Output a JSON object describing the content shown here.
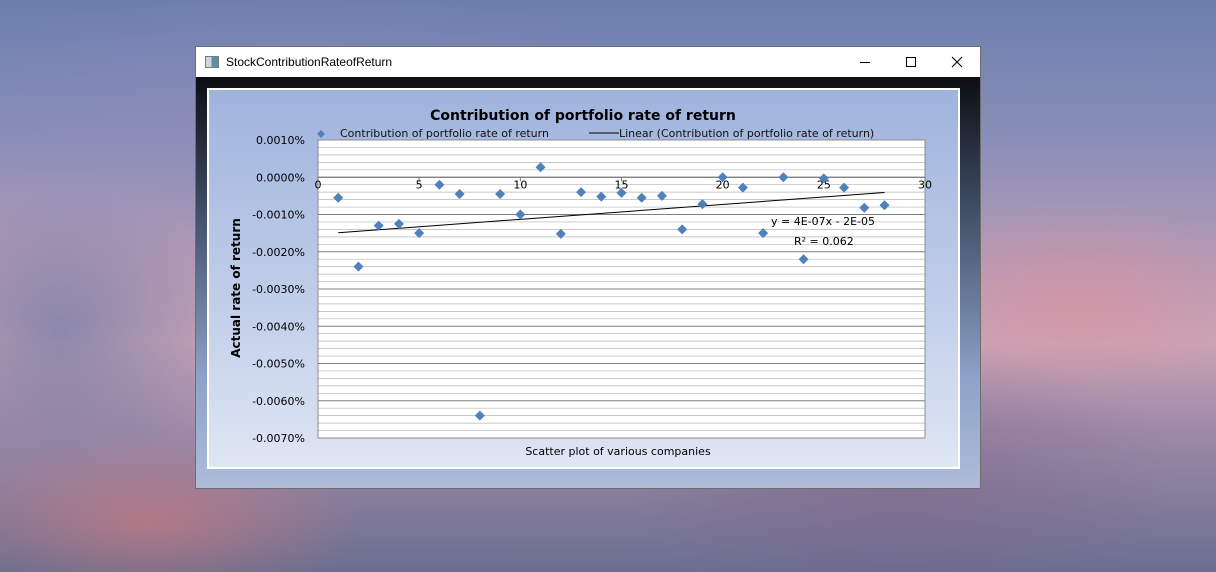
{
  "window": {
    "title": "StockContributionRateofReturn",
    "controls": {
      "minimize": "minimize-icon",
      "maximize": "maximize-icon",
      "close": "close-icon"
    }
  },
  "chart_data": {
    "type": "scatter",
    "title": "Contribution of portfolio rate of return",
    "xlabel": "Scatter plot of various companies",
    "ylabel": "Actual rate of return",
    "xlim": [
      0,
      30
    ],
    "ylim": [
      -0.007,
      0.001
    ],
    "x_ticks": [
      "0",
      "5",
      "10",
      "15",
      "20",
      "25",
      "30"
    ],
    "y_ticks": [
      "0.0010%",
      "0.0000%",
      "-0.0010%",
      "-0.0020%",
      "-0.0030%",
      "-0.0040%",
      "-0.0050%",
      "-0.0060%",
      "-0.0070%"
    ],
    "grid": true,
    "legend_position": "top",
    "series": [
      {
        "name": "Contribution of portfolio rate of return",
        "color": "#4f81bd",
        "marker": "diamond",
        "points": [
          [
            1,
            -0.00055
          ],
          [
            2,
            -0.0024
          ],
          [
            3,
            -0.0013
          ],
          [
            4,
            -0.00125
          ],
          [
            5,
            -0.0015
          ],
          [
            6,
            -0.0002
          ],
          [
            7,
            -0.00045
          ],
          [
            8,
            -0.0064
          ],
          [
            9,
            -0.00045
          ],
          [
            10,
            -0.001
          ],
          [
            11,
            0.00027
          ],
          [
            12,
            -0.00152
          ],
          [
            13,
            -0.0004
          ],
          [
            14,
            -0.00052
          ],
          [
            15,
            -0.00042
          ],
          [
            16,
            -0.00055
          ],
          [
            17,
            -0.0005
          ],
          [
            18,
            -0.0014
          ],
          [
            19,
            -0.00072
          ],
          [
            20,
            0.0
          ],
          [
            21,
            -0.00028
          ],
          [
            22,
            -0.0015
          ],
          [
            23,
            0.0
          ],
          [
            24,
            -0.0022
          ],
          [
            25,
            -3e-05
          ],
          [
            26,
            -0.00028
          ],
          [
            27,
            -0.00082
          ],
          [
            28,
            -0.00075
          ]
        ]
      }
    ],
    "trendline": {
      "name": "Linear (Contribution of portfolio rate of return)",
      "color": "#000000",
      "x_range": [
        1,
        28
      ],
      "slope": 4e-05,
      "intercept": -0.00153,
      "equation": "y = 4E-07x - 2E-05",
      "r_squared": "R² = 0.062"
    }
  }
}
